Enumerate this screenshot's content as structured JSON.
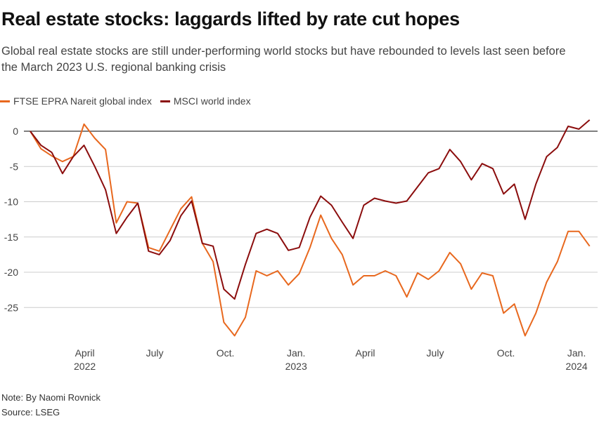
{
  "title": "Real estate stocks: laggards lifted by rate cut hopes",
  "subtitle_lines": [
    "Global real estate stocks are still under-performing world stocks but have rebounded to levels last seen before",
    "the March 2023 U.S. regional banking crisis"
  ],
  "note": "Note: By Naomi Rovnick",
  "source": "Source: LSEG",
  "chart_data": {
    "type": "line",
    "title": "Real estate stocks: laggards lifted by rate cut hopes",
    "ylim": [
      -30,
      2
    ],
    "y_ticks": [
      0,
      -5,
      -10,
      -15,
      -20,
      -25
    ],
    "y_tick_labels": [
      "0",
      "-5",
      "-10",
      "-15",
      "-20",
      "-25"
    ],
    "x_ticks": [
      {
        "date": "2022-04-01",
        "label": "April",
        "year": "2022"
      },
      {
        "date": "2022-07-01",
        "label": "July",
        "year": ""
      },
      {
        "date": "2022-10-01",
        "label": "Oct.",
        "year": ""
      },
      {
        "date": "2023-01-01",
        "label": "Jan.",
        "year": "2023"
      },
      {
        "date": "2023-04-01",
        "label": "April",
        "year": ""
      },
      {
        "date": "2023-07-01",
        "label": "July",
        "year": ""
      },
      {
        "date": "2023-10-01",
        "label": "Oct.",
        "year": ""
      },
      {
        "date": "2024-01-01",
        "label": "Jan.",
        "year": "2024"
      }
    ],
    "grid": true,
    "legend_position": "top-left",
    "x": [
      "2022-01-20",
      "2022-02-03",
      "2022-02-17",
      "2022-03-03",
      "2022-03-17",
      "2022-03-31",
      "2022-04-14",
      "2022-04-28",
      "2022-05-12",
      "2022-05-26",
      "2022-06-09",
      "2022-06-23",
      "2022-07-07",
      "2022-07-21",
      "2022-08-04",
      "2022-08-18",
      "2022-09-01",
      "2022-09-15",
      "2022-09-29",
      "2022-10-13",
      "2022-10-27",
      "2022-11-10",
      "2022-11-24",
      "2022-12-08",
      "2022-12-22",
      "2023-01-05",
      "2023-01-19",
      "2023-02-02",
      "2023-02-16",
      "2023-03-02",
      "2023-03-16",
      "2023-03-30",
      "2023-04-13",
      "2023-04-27",
      "2023-05-11",
      "2023-05-25",
      "2023-06-08",
      "2023-06-22",
      "2023-07-06",
      "2023-07-20",
      "2023-08-03",
      "2023-08-17",
      "2023-08-31",
      "2023-09-14",
      "2023-09-28",
      "2023-10-12",
      "2023-10-26",
      "2023-11-09",
      "2023-11-23",
      "2023-12-07",
      "2023-12-21",
      "2024-01-04",
      "2024-01-18"
    ],
    "series": [
      {
        "name": "FTSE EPRA Nareit global index",
        "color": "#e8681e",
        "values": [
          0,
          -2.5,
          -3.5,
          -4.3,
          -3.6,
          1,
          -1,
          -2.6,
          -13,
          -10,
          -10.2,
          -16.5,
          -17,
          -14,
          -11,
          -9.3,
          -15.9,
          -18.5,
          -27.1,
          -29,
          -26.4,
          -19.8,
          -20.5,
          -19.8,
          -21.8,
          -20.2,
          -16.5,
          -11.9,
          -15.2,
          -17.5,
          -21.8,
          -20.5,
          -20.5,
          -19.8,
          -20.5,
          -23.5,
          -20.1,
          -21,
          -19.8,
          -17.2,
          -18.8,
          -22.4,
          -20.1,
          -20.5,
          -25.8,
          -24.5,
          -29,
          -25.8,
          -21.4,
          -18.5,
          -14.2,
          -14.2,
          -16.3
        ]
      },
      {
        "name": "MSCI world index",
        "color": "#8b0d0d",
        "values": [
          0,
          -2,
          -3,
          -6,
          -3.6,
          -2,
          -5,
          -8.3,
          -14.5,
          -12.2,
          -10.2,
          -17,
          -17.5,
          -15.5,
          -12,
          -9.9,
          -15.9,
          -16.3,
          -22.4,
          -23.8,
          -18.9,
          -14.5,
          -13.9,
          -14.5,
          -16.9,
          -16.5,
          -12.2,
          -9.2,
          -10.5,
          -12.9,
          -15.2,
          -10.5,
          -9.5,
          -9.9,
          -10.2,
          -9.9,
          -7.9,
          -5.9,
          -5.3,
          -2.6,
          -4.3,
          -6.9,
          -4.6,
          -5.3,
          -8.9,
          -7.5,
          -12.5,
          -7.5,
          -3.6,
          -2.3,
          0.7,
          0.3,
          1.6
        ]
      }
    ]
  }
}
